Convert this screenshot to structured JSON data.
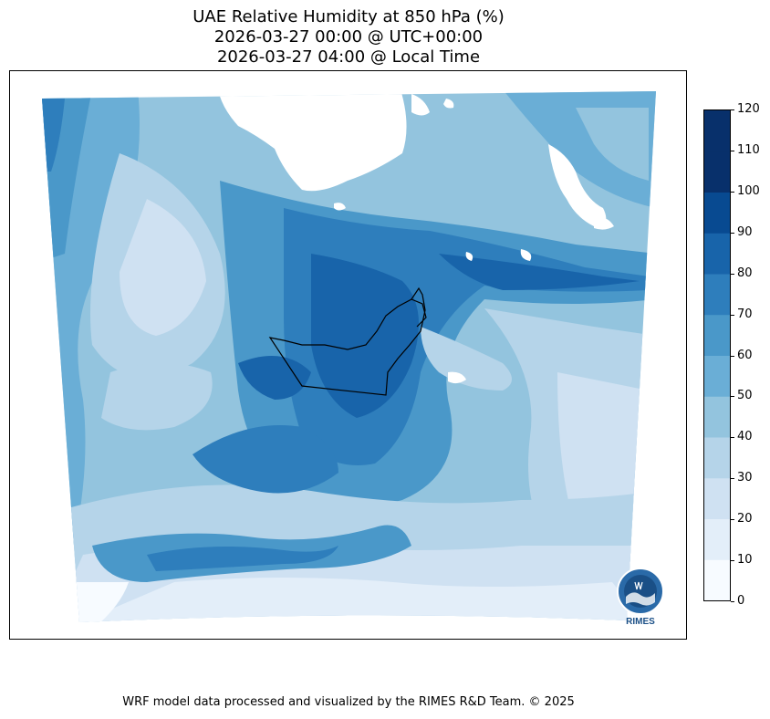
{
  "title": {
    "line1": "UAE Relative Humidity at 850 hPa (%)",
    "line2": "2026-03-27 00:00 @ UTC+00:00",
    "line3": "2026-03-27 04:00 @ Local Time"
  },
  "colorbar": {
    "ticks": [
      "0",
      "10",
      "20",
      "30",
      "40",
      "50",
      "60",
      "70",
      "80",
      "90",
      "100",
      "110",
      "120"
    ],
    "colors": [
      "#f7fbff",
      "#e3eef9",
      "#cfe1f2",
      "#b5d4e9",
      "#93c4de",
      "#6aaed6",
      "#4a98c9",
      "#2e7ebc",
      "#1864aa",
      "#084a91",
      "#08306b",
      "#08306b"
    ]
  },
  "logo": {
    "text": "RIMES"
  },
  "footer": "WRF model data processed and visualized by the RIMES R&D Team. © 2025"
}
